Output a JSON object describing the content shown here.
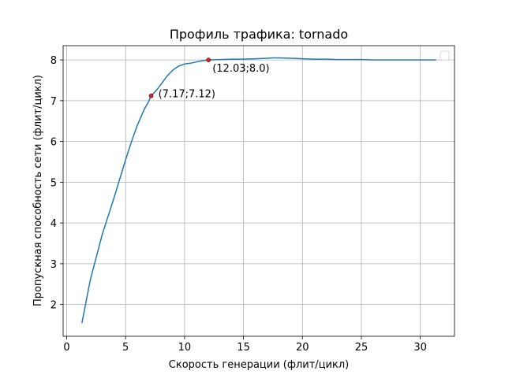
{
  "chart_data": {
    "type": "line",
    "title": "Профиль трафика: tornado",
    "xlabel": "Скорость генерации (флит/цикл)",
    "ylabel": "Пропускная способность сети (флит/цикл)",
    "xlim": [
      -0.3,
      32.9
    ],
    "ylim": [
      1.22,
      8.35
    ],
    "xticks": [
      0,
      5,
      10,
      15,
      20,
      25,
      30
    ],
    "yticks": [
      2,
      3,
      4,
      5,
      6,
      7,
      8
    ],
    "grid": true,
    "legend": "top-right",
    "colors": {
      "series": "#1f77b4",
      "marker": "#d62728"
    },
    "series": [
      {
        "x": [
          1.3,
          2.0,
          3.0,
          4.0,
          5.0,
          5.5,
          6.0,
          6.3,
          6.6,
          6.9,
          7.17,
          7.6,
          8.0,
          8.5,
          9.0,
          9.5,
          10.0,
          10.5,
          11.0,
          11.5,
          12.03,
          13.0,
          14.0,
          15.0,
          16.0,
          17.0,
          17.5,
          18.0,
          19.0,
          20.0,
          21.0,
          22.0,
          23.0,
          24.0,
          25.0,
          26.0,
          27.0,
          28.0,
          29.0,
          30.0,
          31.3
        ],
        "y": [
          1.55,
          2.6,
          3.7,
          4.6,
          5.55,
          6.0,
          6.4,
          6.6,
          6.8,
          6.95,
          7.12,
          7.25,
          7.4,
          7.6,
          7.75,
          7.85,
          7.9,
          7.92,
          7.95,
          7.98,
          8.0,
          8.01,
          8.02,
          8.02,
          8.03,
          8.04,
          8.05,
          8.05,
          8.04,
          8.03,
          8.02,
          8.02,
          8.01,
          8.01,
          8.01,
          8.0,
          8.0,
          8.0,
          8.0,
          8.0,
          8.0
        ]
      }
    ],
    "annotations": [
      {
        "x": 7.17,
        "y": 7.12,
        "text": "(7.17;7.12)"
      },
      {
        "x": 12.03,
        "y": 8.0,
        "text": "(12.03;8.0)"
      }
    ]
  }
}
